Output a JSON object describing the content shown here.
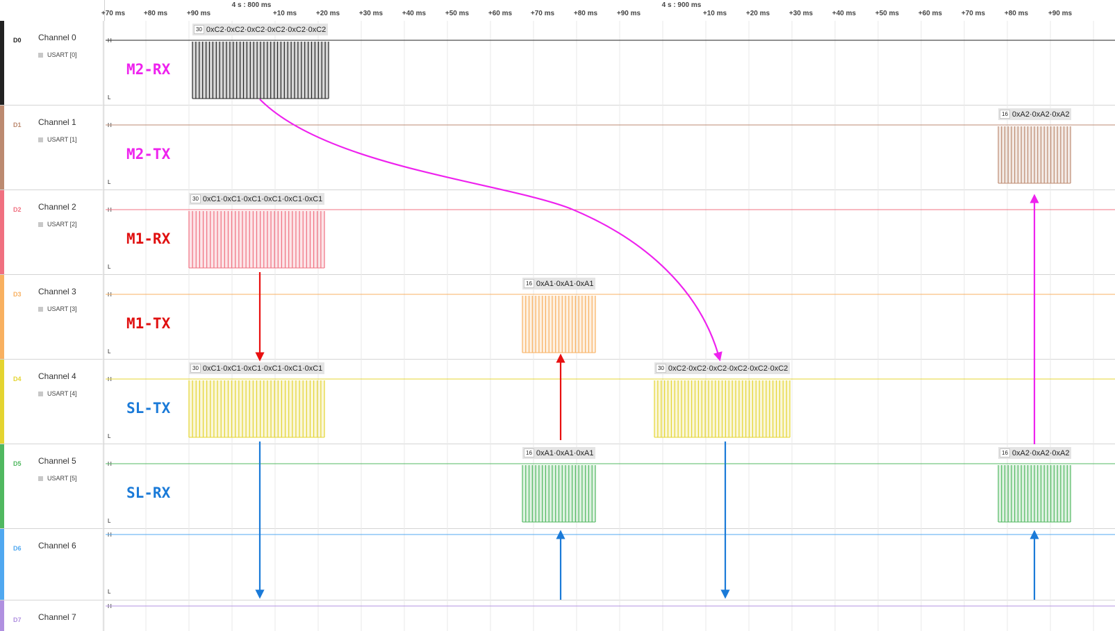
{
  "ruler": {
    "ticks": [
      "+70 ms",
      "+80 ms",
      "+90 ms",
      "+10 ms",
      "+20 ms",
      "+30 ms",
      "+40 ms",
      "+50 ms",
      "+60 ms",
      "+70 ms",
      "+80 ms",
      "+90 ms",
      "+10 ms",
      "+20 ms",
      "+30 ms",
      "+40 ms",
      "+50 ms",
      "+60 ms",
      "+70 ms",
      "+80 ms",
      "+90 ms"
    ],
    "majors": [
      "4 s : 800 ms",
      "4 s : 900 ms"
    ]
  },
  "channels": [
    {
      "id": "D0",
      "name": "Channel 0",
      "analyzer": "USART [0]",
      "color": "#222222",
      "overlay": "M2-RX",
      "overlay_color": "#ee22ee"
    },
    {
      "id": "D1",
      "name": "Channel 1",
      "analyzer": "USART [1]",
      "color": "#bc8a70",
      "overlay": "M2-TX",
      "overlay_color": "#ee22ee"
    },
    {
      "id": "D2",
      "name": "Channel 2",
      "analyzer": "USART [2]",
      "color": "#f07080",
      "overlay": "M1-RX",
      "overlay_color": "#e01010"
    },
    {
      "id": "D3",
      "name": "Channel 3",
      "analyzer": "USART [3]",
      "color": "#f8b060",
      "overlay": "M1-TX",
      "overlay_color": "#e01010"
    },
    {
      "id": "D4",
      "name": "Channel 4",
      "analyzer": "USART [4]",
      "color": "#e4d430",
      "overlay": "SL-TX",
      "overlay_color": "#1a7ad8"
    },
    {
      "id": "D5",
      "name": "Channel 5",
      "analyzer": "USART [5]",
      "color": "#50b860",
      "overlay": "SL-RX",
      "overlay_color": "#1a7ad8"
    },
    {
      "id": "D6",
      "name": "Channel 6",
      "color": "#50a8f0"
    },
    {
      "id": "D7",
      "name": "Channel 7",
      "color": "#b090e0"
    }
  ],
  "level_labels": {
    "high": "H",
    "low": "L"
  },
  "decodes": [
    {
      "count": "30",
      "text": "0xC2·0xC2·0xC2·0xC2·0xC2·0xC2"
    },
    {
      "count": "16",
      "text": "0xA2·0xA2·0xA2"
    },
    {
      "count": "30",
      "text": "0xC1·0xC1·0xC1·0xC1·0xC1·0xC1"
    },
    {
      "count": "16",
      "text": "0xA1·0xA1·0xA1"
    },
    {
      "count": "30",
      "text": "0xC1·0xC1·0xC1·0xC1·0xC1·0xC1"
    },
    {
      "count": "30",
      "text": "0xC2·0xC2·0xC2·0xC2·0xC2·0xC2"
    },
    {
      "count": "16",
      "text": "0xA1·0xA1·0xA1"
    },
    {
      "count": "16",
      "text": "0xA2·0xA2·0xA2"
    }
  ],
  "colors": {
    "magenta_arrow": "#ee22ee",
    "red_arrow": "#e81010",
    "blue_arrow": "#1a7ad8"
  }
}
